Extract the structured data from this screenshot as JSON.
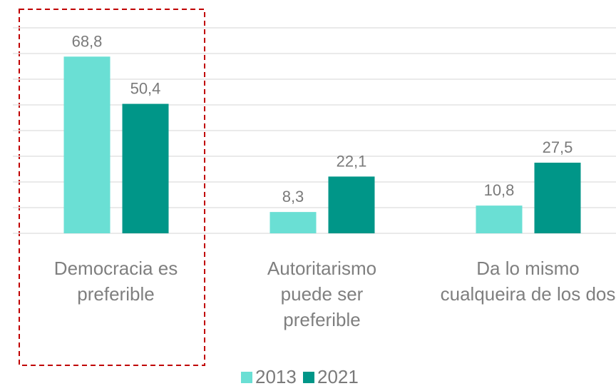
{
  "chart_data": {
    "type": "bar",
    "categories": [
      "Democracia es preferible",
      "Autoritarismo puede ser preferible",
      "Da lo mismo cualqueira de los dos"
    ],
    "series": [
      {
        "name": "2013",
        "color": "#6adfd4",
        "values": [
          68.8,
          8.3,
          10.8
        ],
        "value_labels": [
          "68,8",
          "8,3",
          "10,8"
        ]
      },
      {
        "name": "2021",
        "color": "#009688",
        "values": [
          50.4,
          22.1,
          27.5
        ],
        "value_labels": [
          "50,4",
          "22,1",
          "27,5"
        ]
      }
    ],
    "ylim": [
      0,
      80
    ],
    "yticks": [
      0,
      10,
      20,
      30,
      40,
      50,
      60,
      70,
      80
    ],
    "grid": true,
    "legend": "bottom"
  }
}
